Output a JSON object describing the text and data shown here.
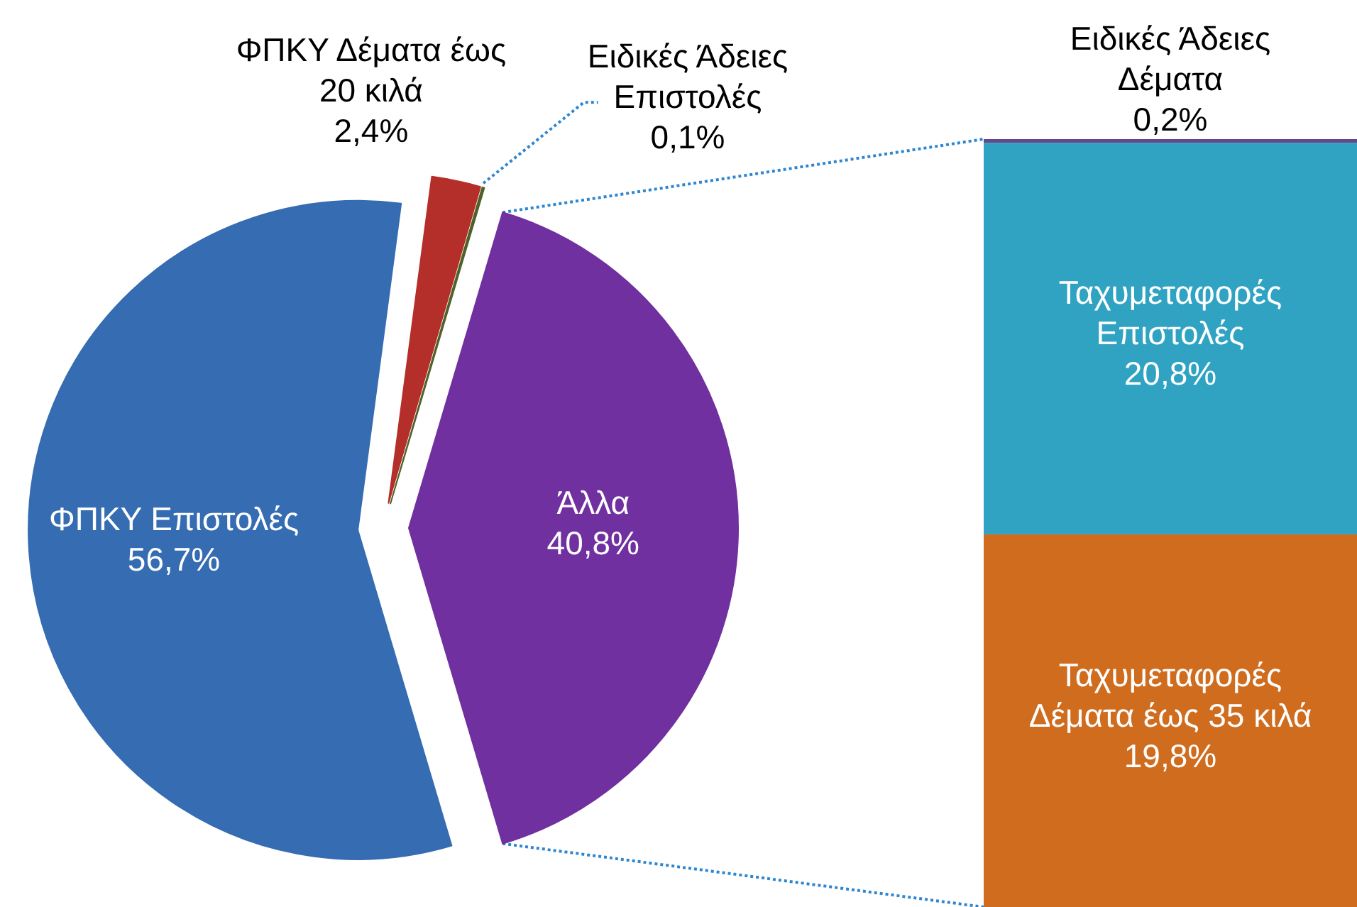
{
  "chart_data": [
    {
      "type": "pie",
      "categories": [
        "ΦΠΚΥ Επιστολές",
        "ΦΠΚΥ Δέματα έως 20 κιλά",
        "Ειδικές Άδειες Επιστολές",
        "Άλλα"
      ],
      "values": [
        56.7,
        2.4,
        0.1,
        40.8
      ],
      "colors": [
        "#356cb2",
        "#b52f2a",
        "#4f6228",
        "#70309f"
      ],
      "value_labels": [
        "56,7%",
        "2,4%",
        "0,1%",
        "40,8%"
      ]
    },
    {
      "type": "bar",
      "stacked": true,
      "categories": [
        null
      ],
      "series": [
        {
          "name": "Ταχυμεταφορές Δέματα έως 35 κιλά",
          "color": "#d06c1e",
          "values": [
            19.8
          ],
          "value_labels": [
            "19,8%"
          ]
        },
        {
          "name": "Ταχυμεταφορές Επιστολές",
          "color": "#30a3c3",
          "values": [
            20.8
          ],
          "value_labels": [
            "20,8%"
          ]
        },
        {
          "name": "Ειδικές Άδειες Δέματα",
          "color": "#5f4b8b",
          "values": [
            0.2
          ],
          "value_labels": [
            "0,2%"
          ]
        }
      ]
    }
  ]
}
